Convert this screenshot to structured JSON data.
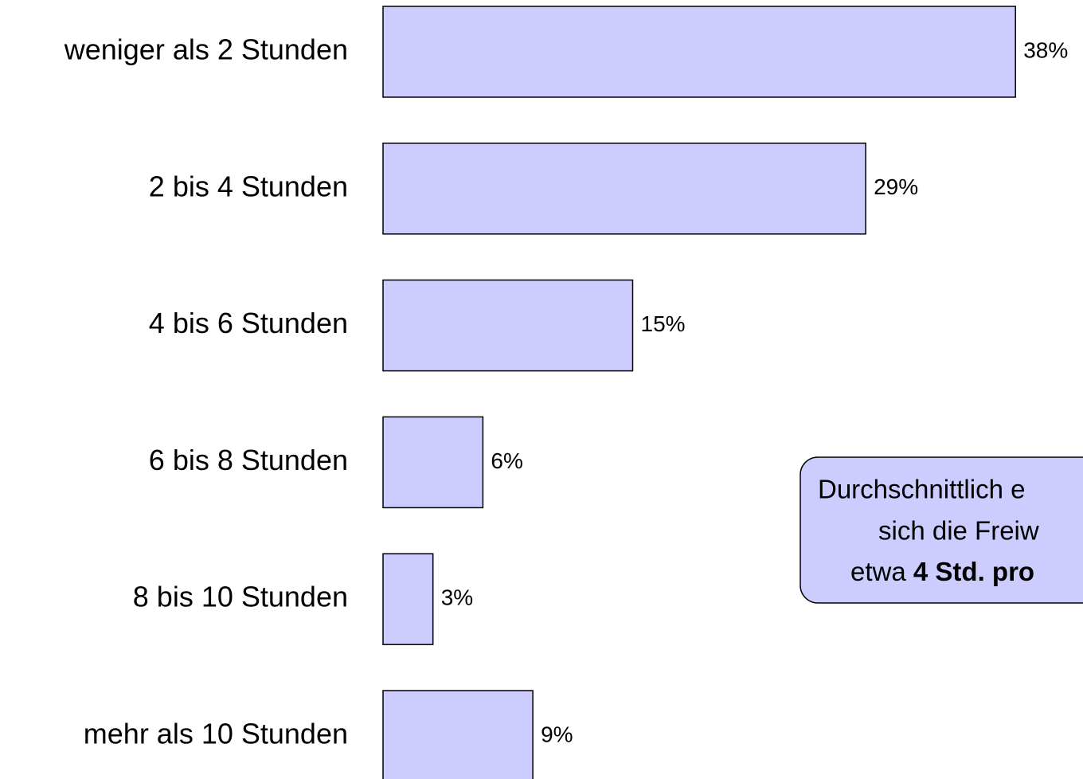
{
  "chart_data": {
    "type": "barh",
    "categories": [
      "weniger als 2 Stunden",
      "2 bis 4 Stunden",
      "4 bis 6 Stunden",
      "6 bis 8 Stunden",
      "8 bis 10 Stunden",
      "mehr als 10 Stunden"
    ],
    "values": [
      38,
      29,
      15,
      6,
      3,
      9
    ],
    "value_labels": [
      "38%",
      "29%",
      "15%",
      "6%",
      "3%",
      "9%"
    ],
    "color": "#ccccff",
    "annotation": {
      "lines": [
        "Durchschnittlich e",
        "sich die Freiw"
      ],
      "last_line": {
        "normal": "etwa",
        "bold": "4 Std. pro"
      }
    }
  }
}
